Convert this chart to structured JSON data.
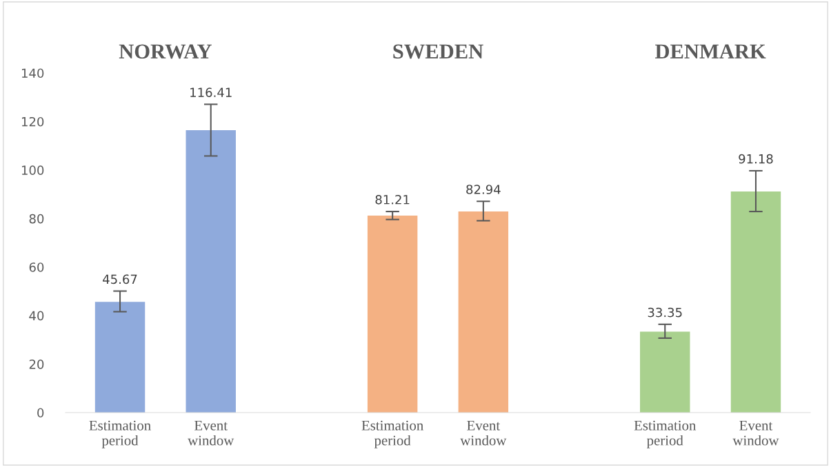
{
  "chart_data": {
    "type": "bar",
    "categories": [
      "Estimation period",
      "Event window",
      null,
      "Estimation period",
      "Event window",
      null,
      "Estimation period",
      "Event window"
    ],
    "values": [
      45.67,
      116.41,
      null,
      81.21,
      82.94,
      null,
      33.35,
      91.18
    ],
    "colors": [
      "#8faadc",
      "#8faadc",
      null,
      "#f4b183",
      "#f4b183",
      null,
      "#a9d18e",
      "#a9d18e"
    ],
    "errors": [
      [
        41.6,
        50.1
      ],
      [
        105.8,
        127.1
      ],
      null,
      [
        79.6,
        82.9
      ],
      [
        79.1,
        87.1
      ],
      null,
      [
        30.7,
        36.4
      ],
      [
        82.9,
        99.7
      ]
    ],
    "data_labels": true,
    "annotations": [
      "NORWAY",
      "SWEDEN",
      "DENMARK"
    ],
    "ylim": [
      0,
      140
    ],
    "yticks": [
      0,
      20,
      40,
      60,
      80,
      100,
      120,
      140
    ],
    "grid": false,
    "legend": false
  }
}
